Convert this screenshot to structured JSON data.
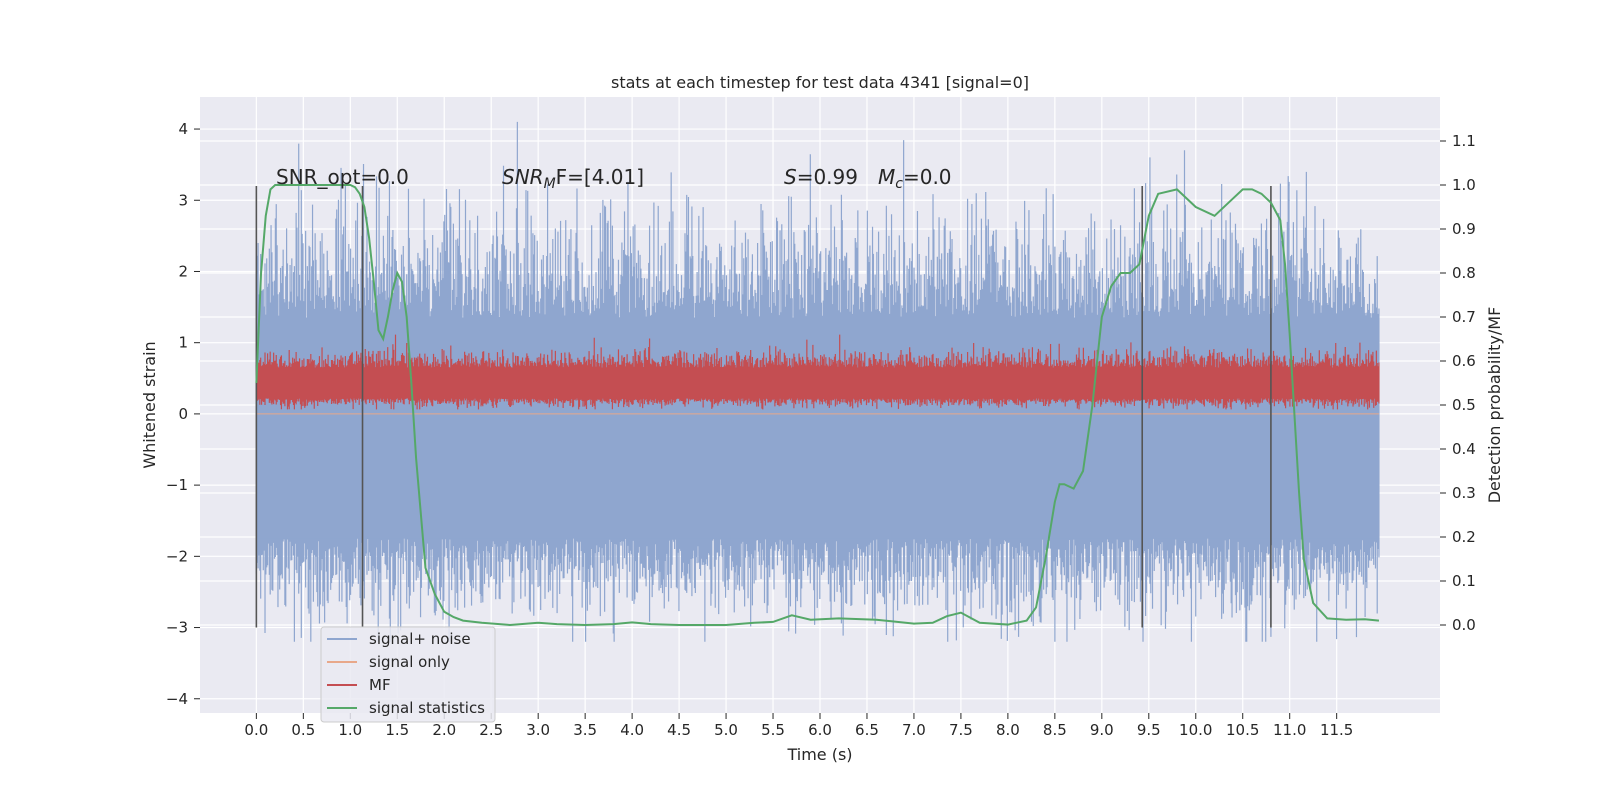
{
  "chart_data": {
    "type": "line",
    "title": "stats at each timestep for test data 4341 [signal=0]",
    "xlabel": "Time (s)",
    "ylabel": "Whitened strain",
    "y2label": "Detection probability/MF",
    "xlim": [
      -0.6,
      12.6
    ],
    "ylim": [
      -4.2,
      4.45
    ],
    "y2lim": [
      -0.2,
      1.2
    ],
    "x_ticks": [
      "0.0",
      "0.5",
      "1.0",
      "1.5",
      "2.0",
      "2.5",
      "3.0",
      "3.5",
      "4.0",
      "4.5",
      "5.0",
      "5.5",
      "6.0",
      "6.5",
      "7.0",
      "7.5",
      "8.0",
      "8.5",
      "9.0",
      "9.5",
      "10.0",
      "10.5",
      "11.0",
      "11.5"
    ],
    "y_ticks": [
      "4",
      "3",
      "2",
      "1",
      "0",
      "−1",
      "−2",
      "−3",
      "−4"
    ],
    "y2_ticks": [
      "1.1",
      "1.0",
      "0.9",
      "0.8",
      "0.7",
      "0.6",
      "0.5",
      "0.4",
      "0.3",
      "0.2",
      "0.1",
      "0.0"
    ],
    "grid": true,
    "legend_placement": "lower-left",
    "legend": [
      "signal+ noise",
      "signal only",
      "MF",
      "signal statistics"
    ],
    "colors": {
      "noise": "#8fa6cf",
      "signal_only": "#e8a88a",
      "mf": "#c44e52",
      "stats": "#55a868",
      "vline": "#555555",
      "background": "#eaeaf2",
      "grid": "#ffffff"
    },
    "annotations": {
      "snr_opt": "SNR_opt=0.0",
      "snr_mf_var": "SNR",
      "snr_mf_sub": "M",
      "snr_mf_rest": "F=[4.01]",
      "s_var": "S",
      "s_rest": "=0.99",
      "mc_var": "M",
      "mc_sub": "c",
      "mc_rest": "=0.0"
    },
    "vertical_lines_x": [
      0.0,
      1.13,
      9.43,
      10.8
    ],
    "vertical_lines_y_range": [
      -3.0,
      3.2
    ],
    "series": [
      {
        "name": "signal+ noise",
        "description": "dense noisy strain trace from 0 to 12 s, roughly within -3 to +3.5 strain",
        "x_range": [
          0.0,
          11.95
        ],
        "y_range": [
          -3.2,
          4.1
        ]
      },
      {
        "name": "signal only",
        "values_constant": 0.0
      },
      {
        "name": "MF",
        "description": "matched filter trace on right axis between ~0.5 and ~0.66",
        "x_range": [
          0.0,
          11.95
        ],
        "y2_range": [
          0.49,
          0.66
        ]
      },
      {
        "name": "signal statistics",
        "axis": "right",
        "x": [
          0.0,
          0.05,
          0.1,
          0.15,
          0.2,
          0.3,
          0.5,
          0.7,
          0.9,
          1.0,
          1.05,
          1.1,
          1.15,
          1.2,
          1.25,
          1.3,
          1.35,
          1.4,
          1.45,
          1.5,
          1.55,
          1.6,
          1.65,
          1.7,
          1.8,
          1.9,
          2.0,
          2.1,
          2.2,
          2.4,
          2.7,
          3.0,
          3.2,
          3.5,
          3.8,
          4.0,
          4.2,
          4.5,
          5.0,
          5.3,
          5.5,
          5.7,
          5.9,
          6.2,
          6.6,
          7.0,
          7.2,
          7.35,
          7.5,
          7.7,
          8.0,
          8.2,
          8.3,
          8.4,
          8.5,
          8.55,
          8.6,
          8.7,
          8.8,
          8.9,
          9.0,
          9.1,
          9.2,
          9.3,
          9.4,
          9.5,
          9.6,
          9.8,
          10.0,
          10.2,
          10.4,
          10.5,
          10.6,
          10.7,
          10.8,
          10.9,
          10.95,
          11.0,
          11.05,
          11.1,
          11.15,
          11.25,
          11.4,
          11.6,
          11.8,
          11.95
        ],
        "values": [
          0.55,
          0.8,
          0.93,
          0.99,
          1.0,
          1.0,
          1.0,
          1.0,
          1.0,
          1.0,
          0.995,
          0.98,
          0.95,
          0.88,
          0.78,
          0.67,
          0.65,
          0.7,
          0.76,
          0.8,
          0.78,
          0.7,
          0.55,
          0.38,
          0.13,
          0.07,
          0.03,
          0.018,
          0.01,
          0.005,
          0.0,
          0.005,
          0.002,
          0.0,
          0.002,
          0.006,
          0.002,
          0.0,
          0.0,
          0.005,
          0.007,
          0.022,
          0.012,
          0.015,
          0.012,
          0.003,
          0.005,
          0.02,
          0.028,
          0.005,
          0.001,
          0.01,
          0.04,
          0.15,
          0.28,
          0.32,
          0.32,
          0.31,
          0.35,
          0.5,
          0.7,
          0.77,
          0.8,
          0.8,
          0.82,
          0.93,
          0.98,
          0.99,
          0.95,
          0.93,
          0.97,
          0.99,
          0.99,
          0.98,
          0.96,
          0.92,
          0.82,
          0.66,
          0.48,
          0.3,
          0.15,
          0.05,
          0.015,
          0.012,
          0.013,
          0.01
        ]
      }
    ]
  }
}
